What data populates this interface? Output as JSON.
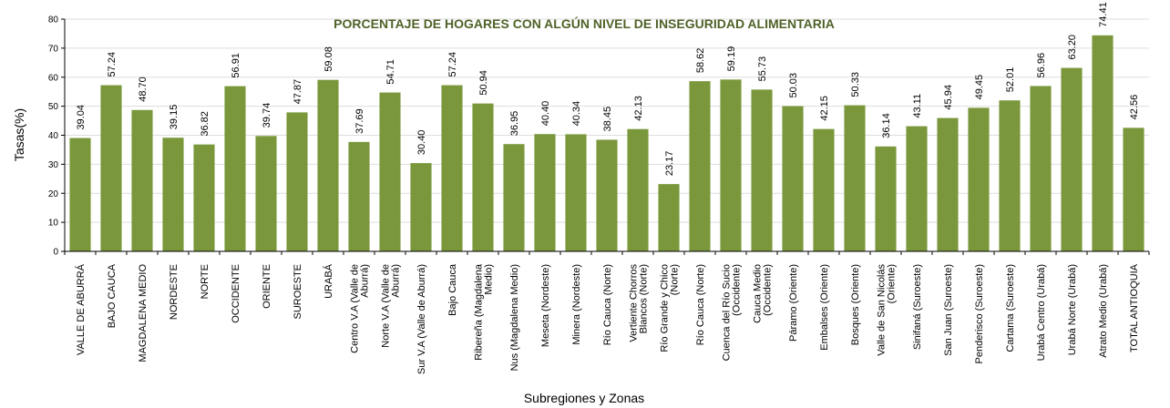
{
  "colors": {
    "bar": "#7a983b",
    "title": "#4f6228",
    "grid": "#dddddd",
    "axis": "#000000"
  },
  "chart_data": {
    "type": "bar",
    "title": "PORCENTAJE DE HOGARES CON ALGÚN NIVEL DE INSEGURIDAD ALIMENTARIA",
    "xlabel": "Subregiones y Zonas",
    "ylabel": "Tasas(%)",
    "ylim": [
      0,
      80
    ],
    "yticks": [
      0,
      10,
      20,
      30,
      40,
      50,
      60,
      70,
      80
    ],
    "grid": true,
    "legend": "none",
    "categories": [
      [
        "VALLE DE ABURRÁ"
      ],
      [
        "BAJO CAUCA"
      ],
      [
        "MAGDALENA MEDIO"
      ],
      [
        "NORDESTE"
      ],
      [
        "NORTE"
      ],
      [
        "OCCIDENTE"
      ],
      [
        "ORIENTE"
      ],
      [
        "SUROESTE"
      ],
      [
        "URABÁ"
      ],
      [
        "Centro V.A (Valle de",
        "Aburrá)"
      ],
      [
        "Norte V.A (Valle de",
        "Aburrá)"
      ],
      [
        "Sur V.A (Valle de Aburrá)"
      ],
      [
        "Bajo Cauca"
      ],
      [
        "Ribereña (Magdalena",
        "Medio)"
      ],
      [
        "Nus (Magdalena Medio)"
      ],
      [
        "Meseta (Nordeste)"
      ],
      [
        "Minera (Nordeste)"
      ],
      [
        "Río Cauca (Norte)"
      ],
      [
        "Vertiente Chorros",
        "Blancos (Norte)"
      ],
      [
        "Río Grande y Chico",
        "(Norte)"
      ],
      [
        "Río Cauca (Norte)"
      ],
      [
        "Cuenca del Río Sucio",
        "(Occidente)"
      ],
      [
        "Cauca Medio",
        "(Occidente)"
      ],
      [
        "Páramo (Oriente)"
      ],
      [
        "Embalses (Oriente)"
      ],
      [
        "Bosques (Oriente)"
      ],
      [
        "Valle de San Nicolás",
        "(Oriente)"
      ],
      [
        "Sinifaná (Suroeste)"
      ],
      [
        "San Juan (Suroeste)"
      ],
      [
        "Penderisco (Suroeste)"
      ],
      [
        "Cartama (Suroeste)"
      ],
      [
        "Urabá Centro (Urabá)"
      ],
      [
        "Urabá Norte (Urabá)"
      ],
      [
        "Atrato Medio (Urabá)"
      ],
      [
        "TOTAL ANTIOQUIA"
      ]
    ],
    "values": [
      39.04,
      57.24,
      48.7,
      39.15,
      36.82,
      56.91,
      39.74,
      47.87,
      59.08,
      37.69,
      54.71,
      30.4,
      57.24,
      50.94,
      36.95,
      40.4,
      40.34,
      38.45,
      42.13,
      23.17,
      58.62,
      59.19,
      55.73,
      50.03,
      42.15,
      50.33,
      36.14,
      43.11,
      45.94,
      49.45,
      52.01,
      56.96,
      63.2,
      74.41,
      42.56
    ],
    "value_labels": [
      "39.04",
      "57.24",
      "48.70",
      "39.15",
      "36.82",
      "56.91",
      "39.74",
      "47.87",
      "59.08",
      "37.69",
      "54.71",
      "30.40",
      "57.24",
      "50.94",
      "36.95",
      "40.40",
      "40.34",
      "38.45",
      "42.13",
      "23.17",
      "58.62",
      "59.19",
      "55.73",
      "50.03",
      "42.15",
      "50.33",
      "36.14",
      "43.11",
      "45.94",
      "49.45",
      "52.01",
      "56.96",
      "63.20",
      "74.41",
      "42.56"
    ]
  }
}
